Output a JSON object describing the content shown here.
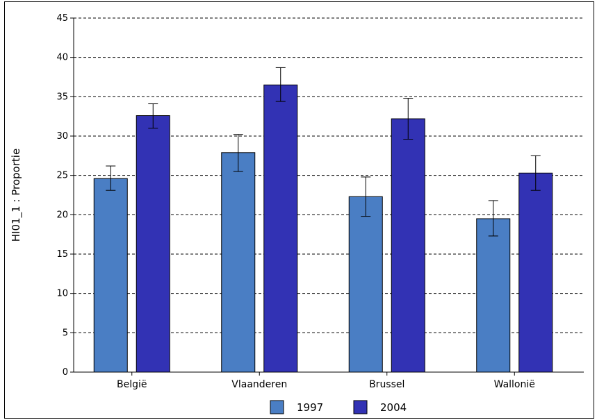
{
  "chart_data": {
    "type": "bar",
    "ylabel": "HI01_1 : Proportie",
    "ylim": [
      0,
      45
    ],
    "ytick_step": 5,
    "yticks": [
      "0",
      "5",
      "10",
      "15",
      "20",
      "25",
      "30",
      "35",
      "40",
      "45"
    ],
    "grid": true,
    "legend_placement": "bottom-center",
    "categories": [
      "België",
      "Vlaanderen",
      "Brussel",
      "Wallonië"
    ],
    "series": [
      {
        "name": "1997",
        "color": "#4a7ec4",
        "values": [
          24.6,
          27.9,
          22.3,
          19.5
        ],
        "error_low": [
          23.1,
          25.5,
          19.8,
          17.3
        ],
        "error_high": [
          26.2,
          30.2,
          24.8,
          21.8
        ]
      },
      {
        "name": "2004",
        "color": "#3232b4",
        "values": [
          32.6,
          36.5,
          32.2,
          25.3
        ],
        "error_low": [
          31.0,
          34.4,
          29.6,
          23.1
        ],
        "error_high": [
          34.1,
          38.7,
          34.8,
          27.5
        ]
      }
    ]
  }
}
